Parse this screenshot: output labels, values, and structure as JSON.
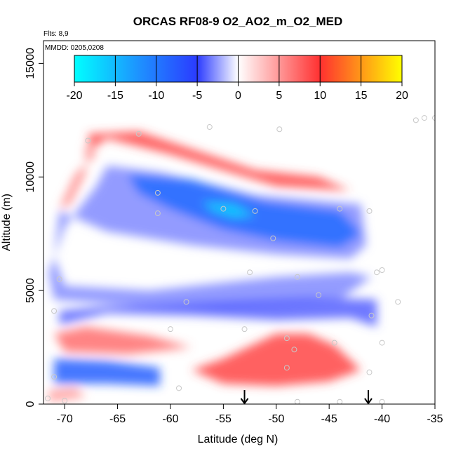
{
  "chart_data": {
    "type": "heatmap",
    "title": "ORCAS RF08-9 O2_AO2_m_O2_MED",
    "flights_label": "Flts: 8,9",
    "date_label": "MMDD: 0205,0208",
    "xlabel": "Latitude (deg N)",
    "ylabel": "Altitude (m)",
    "xlim": [
      -72,
      -35
    ],
    "ylim": [
      0,
      16000
    ],
    "x_ticks": [
      -70,
      -65,
      -60,
      -55,
      -50,
      -45,
      -40,
      -35
    ],
    "x_tick_labels": [
      "-70",
      "-65",
      "-60",
      "-55",
      "-50",
      "-45",
      "-40",
      "-35"
    ],
    "y_ticks": [
      0,
      5000,
      10000,
      15000
    ],
    "y_tick_labels": [
      "0",
      "5000",
      "10000",
      "15000"
    ],
    "colorbar": {
      "ticks": [
        -20,
        -15,
        -10,
        -5,
        0,
        5,
        10,
        15,
        20
      ],
      "tick_labels": [
        "-20",
        "-15",
        "-10",
        "-5",
        "0",
        "5",
        "10",
        "15",
        "20"
      ],
      "range": [
        -20,
        20
      ],
      "colors": [
        "#00ffff",
        "#1e90ff",
        "#2b3bff",
        "#ffffff",
        "#ff3030",
        "#ffff00"
      ]
    },
    "field_regions": [
      {
        "name": "upper-positive-rim",
        "value": 9,
        "polygon": [
          [
            -67.8,
            11900
          ],
          [
            -63,
            12000
          ],
          [
            -52,
            10300
          ],
          [
            -46,
            10000
          ],
          [
            -43,
            9400
          ],
          [
            -50,
            9600
          ],
          [
            -60,
            11000
          ],
          [
            -66,
            11700
          ],
          [
            -67.5,
            11200
          ]
        ]
      },
      {
        "name": "upper-edge-positive",
        "value": 6,
        "polygon": [
          [
            -68,
            11500
          ],
          [
            -67,
            11000
          ],
          [
            -69,
            10100
          ],
          [
            -70.5,
            8600
          ],
          [
            -69.5,
            8800
          ],
          [
            -68,
            10200
          ]
        ]
      },
      {
        "name": "mid-negative-band",
        "value": -3,
        "polygon": [
          [
            -66,
            10500
          ],
          [
            -61,
            10200
          ],
          [
            -52,
            9200
          ],
          [
            -42,
            8800
          ],
          [
            -41.5,
            7000
          ],
          [
            -43,
            6400
          ],
          [
            -50,
            6600
          ],
          [
            -58,
            7000
          ],
          [
            -66,
            7600
          ],
          [
            -70.5,
            8500
          ],
          [
            -71,
            6500
          ],
          [
            -70,
            5200
          ],
          [
            -62,
            5000
          ],
          [
            -50,
            5600
          ],
          [
            -43,
            5800
          ],
          [
            -41,
            5600
          ],
          [
            -44,
            4600
          ],
          [
            -55,
            4200
          ],
          [
            -65,
            4400
          ],
          [
            -71,
            4600
          ],
          [
            -71.5,
            5800
          ],
          [
            -70,
            7800
          ],
          [
            -67,
            9600
          ]
        ]
      },
      {
        "name": "strong-negative-core",
        "value": -9,
        "polygon": [
          [
            -64,
            10100
          ],
          [
            -58,
            9900
          ],
          [
            -51,
            8900
          ],
          [
            -44,
            8500
          ],
          [
            -42,
            7500
          ],
          [
            -44,
            6900
          ],
          [
            -50,
            7200
          ],
          [
            -55,
            7700
          ],
          [
            -60,
            8600
          ],
          [
            -63,
            9300
          ]
        ]
      },
      {
        "name": "negative-cyan-core",
        "value": -17,
        "polygon": [
          [
            -57,
            8900
          ],
          [
            -54,
            8800
          ],
          [
            -52,
            8300
          ],
          [
            -54,
            8200
          ],
          [
            -56,
            8500
          ]
        ]
      },
      {
        "name": "lower-negative-band",
        "value": -4,
        "polygon": [
          [
            -66,
            4000
          ],
          [
            -58,
            3900
          ],
          [
            -50,
            3700
          ],
          [
            -43,
            3800
          ],
          [
            -40.5,
            3400
          ],
          [
            -40.5,
            4600
          ],
          [
            -47,
            4700
          ],
          [
            -57,
            4500
          ],
          [
            -66,
            4300
          ],
          [
            -70.5,
            4100
          ],
          [
            -70.5,
            3500
          ]
        ]
      },
      {
        "name": "near-surface-positive",
        "value": 9,
        "polygon": [
          [
            -55,
            2000
          ],
          [
            -50,
            3100
          ],
          [
            -47,
            3100
          ],
          [
            -44.5,
            2600
          ],
          [
            -42,
            1500
          ],
          [
            -45,
            1000
          ],
          [
            -50,
            800
          ],
          [
            -55,
            900
          ],
          [
            -58,
            1500
          ]
        ]
      },
      {
        "name": "left-positive-lens",
        "value": 7,
        "polygon": [
          [
            -71,
            3100
          ],
          [
            -68,
            3400
          ],
          [
            -62,
            3000
          ],
          [
            -58,
            2500
          ],
          [
            -64,
            2200
          ],
          [
            -70,
            2300
          ]
        ]
      },
      {
        "name": "lower-left-negative",
        "value": -8,
        "polygon": [
          [
            -71,
            2000
          ],
          [
            -66,
            1900
          ],
          [
            -61,
            1600
          ],
          [
            -61,
            800
          ],
          [
            -66,
            900
          ],
          [
            -71,
            900
          ]
        ]
      },
      {
        "name": "surface-left-positive",
        "value": 5,
        "polygon": [
          [
            -71.5,
            600
          ],
          [
            -69,
            700
          ],
          [
            -68,
            300
          ],
          [
            -71.5,
            100
          ]
        ]
      }
    ],
    "sample_points": [
      [
        -67.8,
        11600
      ],
      [
        -63,
        11900
      ],
      [
        -56.3,
        12200
      ],
      [
        -49.7,
        12100
      ],
      [
        -36.8,
        12500
      ],
      [
        -36,
        12600
      ],
      [
        -35,
        12600
      ],
      [
        -61.2,
        9300
      ],
      [
        -61.2,
        8400
      ],
      [
        -55,
        8600
      ],
      [
        -52,
        8500
      ],
      [
        -50.3,
        7300
      ],
      [
        -44,
        8600
      ],
      [
        -41.2,
        8500
      ],
      [
        -52.5,
        5800
      ],
      [
        -48,
        5600
      ],
      [
        -46,
        4800
      ],
      [
        -40,
        5900
      ],
      [
        -40.5,
        5800
      ],
      [
        -38.5,
        4500
      ],
      [
        -58.5,
        4500
      ],
      [
        -60,
        3300
      ],
      [
        -71,
        4100
      ],
      [
        -70.5,
        5500
      ],
      [
        -53,
        3300
      ],
      [
        -49,
        2900
      ],
      [
        -48.3,
        2400
      ],
      [
        -49,
        1600
      ],
      [
        -44.5,
        2700
      ],
      [
        -41,
        3900
      ],
      [
        -40,
        2700
      ],
      [
        -41.2,
        1400
      ],
      [
        -71,
        1200
      ],
      [
        -70,
        150
      ],
      [
        -71.6,
        250
      ],
      [
        -59.2,
        700
      ],
      [
        -48,
        100
      ],
      [
        -44,
        100
      ],
      [
        -40,
        100
      ]
    ],
    "flight_markers_x": [
      -53,
      -41.3
    ]
  }
}
